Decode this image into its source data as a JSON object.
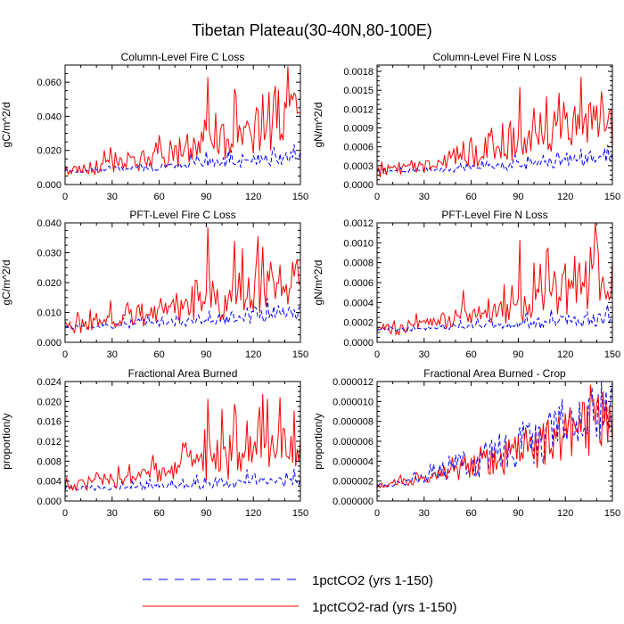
{
  "figure": {
    "title": "Tibetan Plateau(30-40N,80-100E)",
    "legend": [
      {
        "label": "1pctCO2 (yrs 1-150)",
        "color": "#0000ff",
        "dash": "dashed"
      },
      {
        "label": "1pctCO2-rad (yrs 1-150)",
        "color": "#ff0000",
        "dash": "solid"
      }
    ]
  },
  "chart_data": [
    {
      "type": "line",
      "title": "Column-Level Fire C Loss",
      "ylabel": "gC/m^2/d",
      "xlabel": "",
      "xlim": [
        0,
        150
      ],
      "ylim": [
        0,
        0.07
      ],
      "xticks": [
        0,
        30,
        60,
        90,
        120,
        150
      ],
      "yticks": [
        "0.000",
        "0.020",
        "0.040",
        "0.060"
      ],
      "ytick_values": [
        0,
        0.02,
        0.04,
        0.06
      ],
      "series": [
        {
          "name": "1pctCO2 (yrs 1-150)",
          "color": "#0000ff",
          "dash": "dashed",
          "base": 0.008,
          "trend": 0.008,
          "amp": 0.006,
          "seed": 11
        },
        {
          "name": "1pctCO2-rad (yrs 1-150)",
          "color": "#ff0000",
          "dash": "solid",
          "base": 0.008,
          "trend": 0.03,
          "amp": 0.018,
          "seed": 23,
          "peaks": [
            [
              91,
              0.063
            ],
            [
              108,
              0.056
            ],
            [
              126,
              0.053
            ],
            [
              122,
              0.045
            ]
          ]
        }
      ]
    },
    {
      "type": "line",
      "title": "Column-Level Fire N Loss",
      "ylabel": "gN/m^2/d",
      "xlabel": "",
      "xlim": [
        0,
        150
      ],
      "ylim": [
        0,
        0.0019
      ],
      "xticks": [
        0,
        30,
        60,
        90,
        120,
        150
      ],
      "yticks": [
        "0.0000",
        "0.0003",
        "0.0006",
        "0.0009",
        "0.0012",
        "0.0015",
        "0.0018"
      ],
      "ytick_values": [
        0,
        0.0003,
        0.0006,
        0.0009,
        0.0012,
        0.0015,
        0.0018
      ],
      "series": [
        {
          "name": "1pctCO2 (yrs 1-150)",
          "color": "#0000ff",
          "dash": "dashed",
          "base": 0.0002,
          "trend": 0.0002,
          "amp": 0.00018,
          "seed": 31
        },
        {
          "name": "1pctCO2-rad (yrs 1-150)",
          "color": "#ff0000",
          "dash": "solid",
          "base": 0.0002,
          "trend": 0.0008,
          "amp": 0.0005,
          "seed": 43,
          "peaks": [
            [
              91,
              0.00155
            ],
            [
              108,
              0.0014
            ],
            [
              126,
              0.00125
            ],
            [
              100,
              0.00122
            ]
          ]
        }
      ]
    },
    {
      "type": "line",
      "title": "PFT-Level Fire C Loss",
      "ylabel": "gC/m^2/d",
      "xlabel": "",
      "xlim": [
        0,
        150
      ],
      "ylim": [
        0,
        0.04
      ],
      "xticks": [
        0,
        30,
        60,
        90,
        120,
        150
      ],
      "yticks": [
        "0.000",
        "0.010",
        "0.020",
        "0.030",
        "0.040"
      ],
      "ytick_values": [
        0,
        0.01,
        0.02,
        0.03,
        0.04
      ],
      "series": [
        {
          "name": "1pctCO2 (yrs 1-150)",
          "color": "#0000ff",
          "dash": "dashed",
          "base": 0.005,
          "trend": 0.005,
          "amp": 0.004,
          "seed": 51
        },
        {
          "name": "1pctCO2-rad (yrs 1-150)",
          "color": "#ff0000",
          "dash": "solid",
          "base": 0.005,
          "trend": 0.017,
          "amp": 0.011,
          "seed": 63,
          "peaks": [
            [
              91,
              0.0385
            ],
            [
              108,
              0.034
            ],
            [
              126,
              0.032
            ],
            [
              122,
              0.0275
            ]
          ]
        }
      ]
    },
    {
      "type": "line",
      "title": "PFT-Level Fire N Loss",
      "ylabel": "gN/m^2/d",
      "xlabel": "",
      "xlim": [
        0,
        150
      ],
      "ylim": [
        0,
        0.0012
      ],
      "xticks": [
        0,
        30,
        60,
        90,
        120,
        150
      ],
      "yticks": [
        "0.0000",
        "0.0002",
        "0.0004",
        "0.0006",
        "0.0008",
        "0.0010",
        "0.0012"
      ],
      "ytick_values": [
        0,
        0.0002,
        0.0004,
        0.0006,
        0.0008,
        0.001,
        0.0012
      ],
      "series": [
        {
          "name": "1pctCO2 (yrs 1-150)",
          "color": "#0000ff",
          "dash": "dashed",
          "base": 0.00012,
          "trend": 0.00012,
          "amp": 0.0001,
          "seed": 71
        },
        {
          "name": "1pctCO2-rad (yrs 1-150)",
          "color": "#ff0000",
          "dash": "solid",
          "base": 0.00012,
          "trend": 0.00052,
          "amp": 0.00032,
          "seed": 83,
          "peaks": [
            [
              91,
              0.00103
            ],
            [
              108,
              0.00092
            ],
            [
              126,
              0.00087
            ],
            [
              100,
              0.0008
            ]
          ]
        }
      ]
    },
    {
      "type": "line",
      "title": "Fractional Area Burned",
      "ylabel": "proportion/y",
      "xlabel": "",
      "xlim": [
        0,
        150
      ],
      "ylim": [
        0,
        0.024
      ],
      "xticks": [
        0,
        30,
        60,
        90,
        120,
        150
      ],
      "yticks": [
        "0.000",
        "0.004",
        "0.008",
        "0.012",
        "0.016",
        "0.020",
        "0.024"
      ],
      "ytick_values": [
        0,
        0.004,
        0.008,
        0.012,
        0.016,
        0.02,
        0.024
      ],
      "series": [
        {
          "name": "1pctCO2 (yrs 1-150)",
          "color": "#0000ff",
          "dash": "dashed",
          "base": 0.0025,
          "trend": 0.0015,
          "amp": 0.0022,
          "seed": 91
        },
        {
          "name": "1pctCO2-rad (yrs 1-150)",
          "color": "#ff0000",
          "dash": "solid",
          "base": 0.003,
          "trend": 0.009,
          "amp": 0.006,
          "seed": 103,
          "peaks": [
            [
              91,
              0.0205
            ],
            [
              108,
              0.0195
            ],
            [
              126,
              0.0215
            ],
            [
              129,
              0.0205
            ],
            [
              100,
              0.0185
            ]
          ]
        }
      ]
    },
    {
      "type": "line",
      "title": "Fractional Area Burned - Crop",
      "ylabel": "proportion/y",
      "xlabel": "",
      "xlim": [
        0,
        150
      ],
      "ylim": [
        0,
        1.2e-05
      ],
      "xticks": [
        0,
        30,
        60,
        90,
        120,
        150
      ],
      "yticks": [
        "0.000000",
        "0.000002",
        "0.000004",
        "0.000006",
        "0.000008",
        "0.000010",
        "0.000012"
      ],
      "ytick_values": [
        0,
        2e-06,
        4e-06,
        6e-06,
        8e-06,
        1e-05,
        1.2e-05
      ],
      "series": [
        {
          "name": "1pctCO2 (yrs 1-150)",
          "color": "#0000ff",
          "dash": "dashed",
          "base": 1.5e-06,
          "trend": 7.5e-06,
          "amp": 1.2e-06,
          "seed": 111,
          "peaks": [
            [
              116,
              9.5e-06
            ],
            [
              149,
              1.08e-05
            ],
            [
              135,
              1.02e-05
            ]
          ]
        },
        {
          "name": "1pctCO2-rad (yrs 1-150)",
          "color": "#ff0000",
          "dash": "solid",
          "base": 1.5e-06,
          "trend": 6.5e-06,
          "amp": 1.2e-06,
          "seed": 123,
          "peaks": [
            [
              66,
              5.5e-06
            ],
            [
              140,
              9.8e-06
            ]
          ]
        }
      ]
    }
  ]
}
